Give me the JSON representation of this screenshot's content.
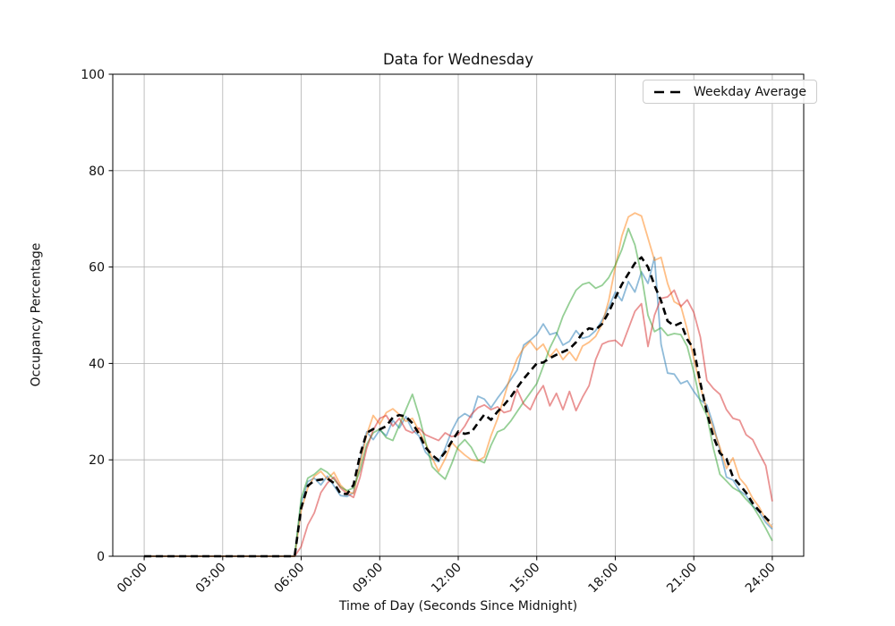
{
  "figure": {
    "background": "#ffffff"
  },
  "chart_data": {
    "type": "line",
    "title": "Data for Wednesday",
    "xlabel": "Time of Day (Seconds Since Midnight)",
    "ylabel": "Occupancy Percentage",
    "x_start_hour": 0,
    "x_step_minutes": 15,
    "xlim_hours": [
      -1.2,
      25.2
    ],
    "ylim": [
      0,
      100
    ],
    "x_tick_hours": [
      0,
      3,
      6,
      9,
      12,
      15,
      18,
      21,
      24
    ],
    "x_tick_labels": [
      "00:00",
      "03:00",
      "06:00",
      "09:00",
      "12:00",
      "15:00",
      "18:00",
      "21:00",
      "24:00"
    ],
    "y_ticks": [
      0,
      20,
      40,
      60,
      80,
      100
    ],
    "grid": true,
    "grid_color": "#b0b0b0",
    "legend": {
      "position": "upper right",
      "entries": [
        {
          "label": "Weekday Average",
          "color": "#000000",
          "style": "dashed"
        }
      ]
    },
    "series": [
      {
        "name": "wednesday-1-blue",
        "color": "#1f77b4",
        "opacity": 0.5,
        "line_width": 1.8,
        "dash": null,
        "values": [
          0,
          0,
          0,
          0,
          0,
          0,
          0,
          0,
          0,
          0,
          0,
          0,
          0,
          0,
          0,
          0,
          0,
          0,
          0,
          0,
          0,
          0,
          0,
          0,
          11,
          15.5,
          16.2,
          14.8,
          16.6,
          14.6,
          12.6,
          12.4,
          13.2,
          20,
          25.8,
          24.2,
          26.2,
          25,
          28.2,
          26.6,
          29,
          26.2,
          25,
          21.6,
          20.2,
          19.6,
          22.4,
          26,
          28.6,
          29.6,
          28.8,
          33.2,
          32.6,
          30.8,
          32.8,
          34.6,
          36.6,
          38.6,
          43.8,
          44.8,
          46,
          48.2,
          46,
          46.4,
          43.8,
          44.6,
          46.8,
          45.2,
          45.6,
          46.8,
          49,
          51.6,
          54.8,
          53,
          57,
          54.8,
          59,
          56.6,
          62,
          44,
          38,
          37.8,
          35.8,
          36.4,
          34.2,
          32.4,
          31.4,
          27.2,
          22,
          16.4,
          15.8,
          13.6,
          12.6,
          10.4,
          9.2,
          7,
          5.6
        ]
      },
      {
        "name": "wednesday-2-orange",
        "color": "#ff7f0e",
        "opacity": 0.5,
        "line_width": 1.8,
        "dash": null,
        "values": [
          0,
          0,
          0,
          0,
          0,
          0,
          0,
          0,
          0,
          0,
          0,
          0,
          0,
          0,
          0,
          0,
          0,
          0,
          0,
          0,
          0,
          0,
          0,
          0,
          9.5,
          14.2,
          16.6,
          17.6,
          16,
          17.4,
          14.8,
          13.4,
          13,
          19.2,
          25.2,
          29.2,
          27.4,
          29.8,
          30.6,
          29.4,
          28,
          28.6,
          26,
          23.4,
          20.4,
          17.6,
          20.2,
          23.6,
          22.2,
          21,
          20,
          19.8,
          20.6,
          25,
          28.5,
          33,
          37.5,
          41,
          43.2,
          44.6,
          42.8,
          44,
          41.4,
          43,
          40.8,
          42.4,
          40.6,
          43.6,
          44.4,
          45.6,
          48.2,
          53,
          60,
          66.4,
          70.4,
          71.2,
          70.6,
          66,
          61.4,
          62,
          56.6,
          52.8,
          52,
          47,
          41,
          35.2,
          30.4,
          26.4,
          22.6,
          18.2,
          20.4,
          16.2,
          14.6,
          12,
          10.2,
          7.6,
          6
        ]
      },
      {
        "name": "wednesday-3-green",
        "color": "#2ca02c",
        "opacity": 0.5,
        "line_width": 1.8,
        "dash": null,
        "values": [
          0,
          0,
          0,
          0,
          0,
          0,
          0,
          0,
          0,
          0,
          0,
          0,
          0,
          0,
          0,
          0,
          0,
          0,
          0,
          0,
          0,
          0,
          0,
          0,
          12,
          16.2,
          17,
          18.2,
          17.4,
          16,
          14.4,
          13.6,
          14.2,
          17.8,
          23.2,
          25.6,
          26.4,
          24.6,
          24,
          27.2,
          30.4,
          33.6,
          29.2,
          23.8,
          18.6,
          17.2,
          16,
          19.2,
          22.8,
          24.2,
          22.6,
          20,
          19.4,
          23,
          25.8,
          26.4,
          28,
          30,
          32,
          33.9,
          35.8,
          39.4,
          43.2,
          46,
          49.8,
          52.6,
          55.2,
          56.4,
          56.8,
          55.6,
          56.2,
          57.8,
          60.4,
          63.6,
          68,
          64.6,
          58.4,
          50,
          46.6,
          47.4,
          45.8,
          46.2,
          46,
          43.5,
          38.2,
          32,
          29.2,
          22.4,
          17,
          15.6,
          14.2,
          13.4,
          11.8,
          10.4,
          8.2,
          5.8,
          3.2
        ]
      },
      {
        "name": "wednesday-4-red",
        "color": "#d62728",
        "opacity": 0.5,
        "line_width": 1.8,
        "dash": null,
        "values": [
          0,
          0,
          0,
          0,
          0,
          0,
          0,
          0,
          0,
          0,
          0,
          0,
          0,
          0,
          0,
          0,
          0,
          0,
          0,
          0,
          0,
          0,
          0,
          0,
          2,
          6.5,
          9,
          13.2,
          15.2,
          16.4,
          14.2,
          13,
          12.2,
          16.4,
          22.4,
          26.2,
          28.6,
          29.2,
          27,
          28.6,
          26.2,
          25.6,
          26.6,
          25.2,
          24.6,
          24,
          25.6,
          24.8,
          25.2,
          27,
          29.4,
          30.8,
          31.4,
          30.4,
          31,
          29.8,
          30.2,
          34.6,
          31.6,
          30.4,
          33.4,
          35.4,
          31.2,
          33.8,
          30.4,
          34.2,
          30.2,
          33,
          35.4,
          40.8,
          44,
          44.6,
          44.8,
          43.6,
          47.2,
          50.8,
          52.4,
          43.5,
          50,
          53.5,
          53.8,
          55.2,
          51.8,
          53.2,
          50.6,
          45.5,
          36.5,
          34.8,
          33.6,
          30.4,
          28.6,
          28.2,
          25.2,
          24.2,
          21.4,
          18.8,
          11.4
        ]
      },
      {
        "name": "weekday-average",
        "label": "Weekday Average",
        "color": "#000000",
        "opacity": 1,
        "line_width": 2.6,
        "dash": [
          8,
          5
        ],
        "values": [
          0,
          0,
          0,
          0,
          0,
          0,
          0,
          0,
          0,
          0,
          0,
          0,
          0,
          0,
          0,
          0,
          0,
          0,
          0,
          0,
          0,
          0,
          0,
          0,
          10,
          14.6,
          15.7,
          15.9,
          16.1,
          15.2,
          13,
          12.9,
          14.8,
          21,
          25.6,
          26.4,
          26.3,
          27,
          28.8,
          29.3,
          29,
          27.6,
          25.4,
          22.6,
          21,
          19.9,
          21.6,
          23.8,
          25.9,
          25.4,
          25.7,
          27.6,
          29.4,
          28.3,
          30,
          31.4,
          33,
          35,
          36.8,
          38.4,
          40,
          40.2,
          41.1,
          41.8,
          42.4,
          43,
          44.4,
          46.3,
          47.3,
          47,
          48.2,
          50.6,
          53.6,
          56.4,
          58.6,
          60.8,
          62,
          60,
          56.2,
          53,
          48.8,
          47.8,
          48.4,
          45,
          43,
          36,
          29.8,
          24.8,
          21.4,
          20.2,
          16.4,
          14.8,
          13.2,
          11,
          9.4,
          8,
          6.6
        ]
      }
    ]
  }
}
